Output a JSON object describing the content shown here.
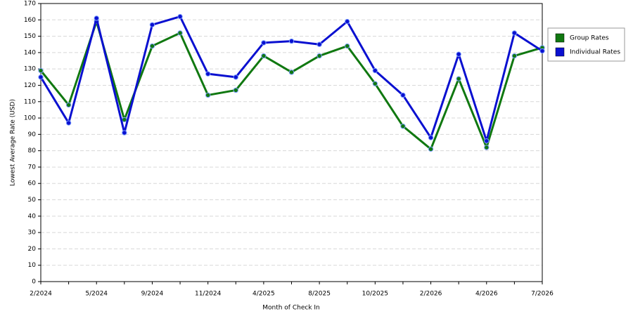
{
  "chart_data": {
    "type": "line",
    "x_label": "Month of Check In",
    "y_label": "Lowest Average Rate (USD)",
    "categories": [
      "2/2024",
      null,
      "5/2024",
      null,
      "9/2024",
      null,
      "11/2024",
      null,
      "4/2025",
      null,
      "8/2025",
      null,
      "10/2025",
      null,
      "2/2026",
      null,
      "4/2026",
      null,
      "7/2026"
    ],
    "series": [
      {
        "name": "Group Rates",
        "color": "#107810",
        "values": [
          129,
          108,
          159,
          99,
          144,
          152,
          114,
          117,
          138,
          128,
          138,
          144,
          121,
          95,
          81,
          124,
          82,
          138,
          143
        ]
      },
      {
        "name": "Individual Rates",
        "color": "#0a10d0",
        "values": [
          125,
          97,
          161,
          91,
          157,
          162,
          127,
          125,
          146,
          147,
          145,
          159,
          129,
          114,
          88,
          139,
          86,
          152,
          141
        ]
      }
    ],
    "ylim": [
      0,
      170
    ],
    "yticks": [
      0,
      10,
      20,
      30,
      40,
      50,
      60,
      70,
      80,
      90,
      100,
      110,
      120,
      130,
      140,
      150,
      160,
      170
    ],
    "grid": true,
    "legend": "right"
  }
}
